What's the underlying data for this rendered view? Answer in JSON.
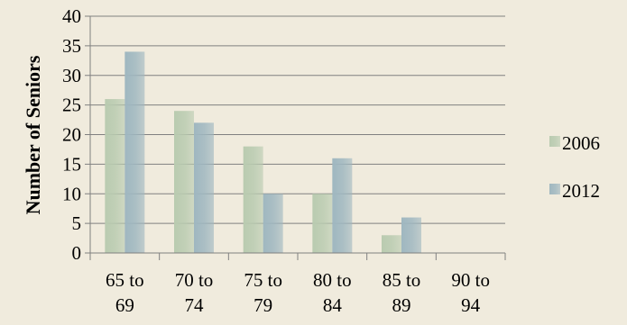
{
  "chart_data": {
    "type": "bar",
    "categories": [
      [
        "65 to",
        "69"
      ],
      [
        "70 to",
        "74"
      ],
      [
        "75 to",
        "79"
      ],
      [
        "80 to",
        "84"
      ],
      [
        "85 to",
        "89"
      ],
      [
        "90 to",
        "94"
      ]
    ],
    "series": [
      {
        "name": "2006",
        "values": [
          26,
          24,
          18,
          10,
          3,
          0
        ],
        "color": "#b9cbb0"
      },
      {
        "name": "2012",
        "values": [
          34,
          22,
          10,
          16,
          6,
          0
        ],
        "color": "#9fb7c0"
      }
    ],
    "title": "",
    "xlabel": "",
    "ylabel": "Number of Seniors",
    "ylim": [
      0,
      40
    ],
    "yticks": [
      0,
      5,
      10,
      15,
      20,
      25,
      30,
      35,
      40
    ],
    "grid": true,
    "legend_position": "right",
    "colors": {
      "background": "#f0ebdd",
      "grid": "#808080",
      "axis": "#808080"
    }
  }
}
